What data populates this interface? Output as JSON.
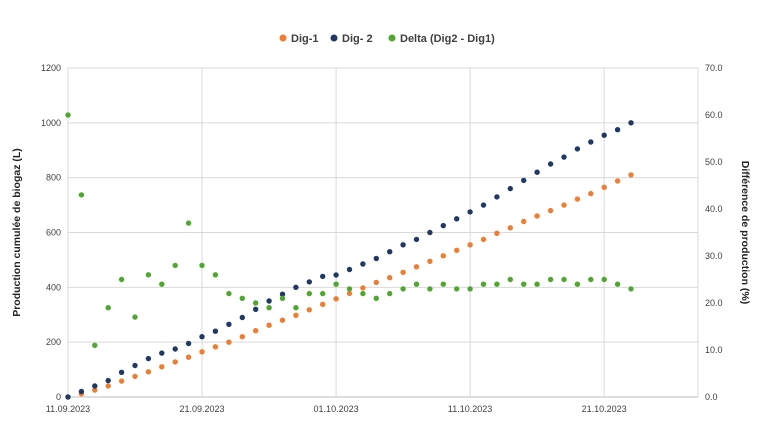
{
  "chart_data": {
    "type": "scatter",
    "title": "",
    "legend_position": "top",
    "grid": true,
    "xlabel": "",
    "ylabel": "Production cumulée de biogaz (L)",
    "y2label": "Différence de production (%)",
    "x_range": [
      "2023-09-11",
      "2023-10-28"
    ],
    "x_ticks": [
      "11.09.2023",
      "21.09.2023",
      "01.10.2023",
      "11.10.2023",
      "21.10.2023"
    ],
    "ylim": [
      0,
      1200
    ],
    "y_ticks": [
      "0",
      "200",
      "400",
      "600",
      "800",
      "1000",
      "1200"
    ],
    "y2lim": [
      0,
      70
    ],
    "y2_ticks": [
      "0.0",
      "10.0",
      "20.0",
      "30.0",
      "40.0",
      "50.0",
      "60.0",
      "70.0"
    ],
    "series": [
      {
        "name": "Dig-1",
        "axis": "left",
        "color": "#ED7D31",
        "x": [
          "2023-09-11",
          "2023-09-12",
          "2023-09-13",
          "2023-09-14",
          "2023-09-15",
          "2023-09-16",
          "2023-09-17",
          "2023-09-18",
          "2023-09-19",
          "2023-09-20",
          "2023-09-21",
          "2023-09-22",
          "2023-09-23",
          "2023-09-24",
          "2023-09-25",
          "2023-09-26",
          "2023-09-27",
          "2023-09-28",
          "2023-09-29",
          "2023-09-30",
          "2023-10-01",
          "2023-10-02",
          "2023-10-03",
          "2023-10-04",
          "2023-10-05",
          "2023-10-06",
          "2023-10-07",
          "2023-10-08",
          "2023-10-09",
          "2023-10-10",
          "2023-10-11",
          "2023-10-12",
          "2023-10-13",
          "2023-10-14",
          "2023-10-15",
          "2023-10-16",
          "2023-10-17",
          "2023-10-18",
          "2023-10-19",
          "2023-10-20",
          "2023-10-21",
          "2023-10-22",
          "2023-10-23"
        ],
        "y": [
          0,
          12,
          25,
          40,
          58,
          75,
          92,
          110,
          128,
          145,
          165,
          183,
          200,
          220,
          242,
          262,
          280,
          298,
          318,
          338,
          358,
          378,
          398,
          418,
          435,
          455,
          475,
          495,
          515,
          535,
          555,
          575,
          597,
          617,
          640,
          660,
          680,
          700,
          722,
          742,
          765,
          788,
          810
        ]
      },
      {
        "name": "Dig- 2",
        "axis": "left",
        "color": "#203864",
        "x": [
          "2023-09-11",
          "2023-09-12",
          "2023-09-13",
          "2023-09-14",
          "2023-09-15",
          "2023-09-16",
          "2023-09-17",
          "2023-09-18",
          "2023-09-19",
          "2023-09-20",
          "2023-09-21",
          "2023-09-22",
          "2023-09-23",
          "2023-09-24",
          "2023-09-25",
          "2023-09-26",
          "2023-09-27",
          "2023-09-28",
          "2023-09-29",
          "2023-09-30",
          "2023-10-01",
          "2023-10-02",
          "2023-10-03",
          "2023-10-04",
          "2023-10-05",
          "2023-10-06",
          "2023-10-07",
          "2023-10-08",
          "2023-10-09",
          "2023-10-10",
          "2023-10-11",
          "2023-10-12",
          "2023-10-13",
          "2023-10-14",
          "2023-10-15",
          "2023-10-16",
          "2023-10-17",
          "2023-10-18",
          "2023-10-19",
          "2023-10-20",
          "2023-10-21",
          "2023-10-22",
          "2023-10-23"
        ],
        "y": [
          0,
          20,
          40,
          60,
          90,
          115,
          140,
          160,
          175,
          195,
          220,
          240,
          265,
          290,
          320,
          350,
          375,
          400,
          420,
          440,
          445,
          465,
          485,
          505,
          530,
          555,
          575,
          600,
          625,
          650,
          675,
          700,
          730,
          760,
          790,
          820,
          850,
          875,
          905,
          930,
          955,
          975,
          1000
        ]
      },
      {
        "name": "Delta (Dig2 - Dig1)",
        "axis": "right",
        "color": "#4EA72E",
        "x": [
          "2023-09-11",
          "2023-09-12",
          "2023-09-13",
          "2023-09-14",
          "2023-09-15",
          "2023-09-16",
          "2023-09-17",
          "2023-09-18",
          "2023-09-19",
          "2023-09-20",
          "2023-09-21",
          "2023-09-22",
          "2023-09-23",
          "2023-09-24",
          "2023-09-25",
          "2023-09-26",
          "2023-09-27",
          "2023-09-28",
          "2023-09-29",
          "2023-09-30",
          "2023-10-01",
          "2023-10-02",
          "2023-10-03",
          "2023-10-04",
          "2023-10-05",
          "2023-10-06",
          "2023-10-07",
          "2023-10-08",
          "2023-10-09",
          "2023-10-10",
          "2023-10-11",
          "2023-10-12",
          "2023-10-13",
          "2023-10-14",
          "2023-10-15",
          "2023-10-16",
          "2023-10-17",
          "2023-10-18",
          "2023-10-19",
          "2023-10-20",
          "2023-10-21",
          "2023-10-22",
          "2023-10-23"
        ],
        "y": [
          60,
          43,
          11,
          19,
          25,
          17,
          26,
          24,
          28,
          37,
          28,
          26,
          22,
          21,
          20,
          19,
          21,
          19,
          22,
          22,
          24,
          23,
          22,
          21,
          22,
          23,
          24,
          23,
          24,
          23,
          23,
          24,
          24,
          25,
          24,
          24,
          25,
          25,
          24,
          25,
          25,
          24,
          23
        ]
      }
    ]
  }
}
